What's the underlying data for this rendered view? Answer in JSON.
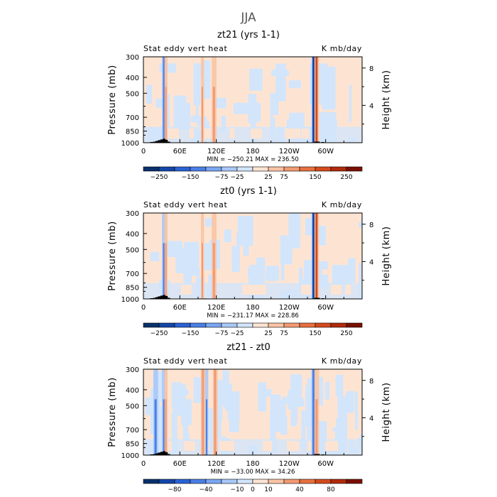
{
  "title": "JJA",
  "chart_data": [
    {
      "type": "heatmap",
      "title": "zt21 (yrs 1-1)",
      "left_label": "Stat eddy vert heat",
      "right_label": "K mb/day",
      "ylabel": "Pressure (mb)",
      "y2label": "Height (km)",
      "y_ticks": [
        "300",
        "400",
        "500",
        "700",
        "850",
        "1000"
      ],
      "y2_ticks": [
        "8",
        "4"
      ],
      "x_ticks": [
        "0",
        "60E",
        "120E",
        "180",
        "120W",
        "60W"
      ],
      "stats": "MIN = −250.21   MAX = 236.50",
      "colorbar": {
        "labels": [
          "−250",
          "−150",
          "−75",
          "−25",
          "25",
          "75",
          "150",
          "250"
        ],
        "colors": [
          "#08306b",
          "#1346a8",
          "#2a62d4",
          "#4a7fe6",
          "#7aa6f2",
          "#a9c8f7",
          "#d2e5fb",
          "#fde4d2",
          "#fac3a4",
          "#f29a72",
          "#e8703f",
          "#d44a1c",
          "#b02a0b",
          "#7a1000"
        ]
      },
      "stripes": [
        {
          "lon": 34,
          "width": 3,
          "strength": -0.7
        },
        {
          "lon": 37,
          "width": 2,
          "strength": 0.6
        },
        {
          "lon": 97,
          "width": 2,
          "strength": 0.55
        },
        {
          "lon": 116,
          "width": 3,
          "strength": 0.55
        },
        {
          "lon": 280,
          "width": 3,
          "strength": -1.0
        },
        {
          "lon": 285,
          "width": 3,
          "strength": 0.85
        }
      ]
    },
    {
      "type": "heatmap",
      "title": "zt0 (yrs 1-1)",
      "left_label": "Stat eddy vert heat",
      "right_label": "K mb/day",
      "ylabel": "Pressure (mb)",
      "y2label": "Height (km)",
      "y_ticks": [
        "300",
        "400",
        "500",
        "700",
        "850",
        "1000"
      ],
      "y2_ticks": [
        "8",
        "4"
      ],
      "x_ticks": [
        "0",
        "60E",
        "120E",
        "180",
        "120W",
        "60W"
      ],
      "stats": "MIN = −231.17   MAX = 228.86",
      "colorbar": {
        "labels": [
          "−250",
          "−150",
          "−75",
          "−25",
          "25",
          "75",
          "150",
          "250"
        ],
        "colors": [
          "#08306b",
          "#1346a8",
          "#2a62d4",
          "#4a7fe6",
          "#7aa6f2",
          "#a9c8f7",
          "#d2e5fb",
          "#fde4d2",
          "#fac3a4",
          "#f29a72",
          "#e8703f",
          "#d44a1c",
          "#b02a0b",
          "#7a1000"
        ]
      },
      "stripes": [
        {
          "lon": 34,
          "width": 3,
          "strength": -0.6
        },
        {
          "lon": 37,
          "width": 2,
          "strength": 0.5
        },
        {
          "lon": 97,
          "width": 2,
          "strength": 0.35
        },
        {
          "lon": 116,
          "width": 3,
          "strength": 0.4
        },
        {
          "lon": 280,
          "width": 3,
          "strength": -1.0
        },
        {
          "lon": 285,
          "width": 3,
          "strength": 0.8
        }
      ]
    },
    {
      "type": "heatmap",
      "title": "zt21 - zt0",
      "left_label": "Stat eddy vert heat",
      "right_label": "K mb/day",
      "ylabel": "Pressure (mb)",
      "y2label": "Height (km)",
      "y_ticks": [
        "300",
        "400",
        "500",
        "700",
        "850",
        "1000"
      ],
      "y2_ticks": [
        "8",
        "4"
      ],
      "x_ticks": [
        "0",
        "60E",
        "120E",
        "180",
        "120W",
        "60W"
      ],
      "stats": "MIN = −33.00   MAX =  34.26",
      "colorbar": {
        "labels": [
          "−80",
          "−40",
          "−10",
          "0",
          "10",
          "40",
          "80"
        ],
        "colors": [
          "#08306b",
          "#1346a8",
          "#2a62d4",
          "#4a7fe6",
          "#7aa6f2",
          "#a9c8f7",
          "#d2e5fb",
          "#fde4d2",
          "#fac3a4",
          "#f29a72",
          "#e8703f",
          "#d44a1c",
          "#b02a0b",
          "#7a1000"
        ]
      },
      "stripes": [
        {
          "lon": 20,
          "width": 3,
          "strength": -0.4
        },
        {
          "lon": 34,
          "width": 3,
          "strength": -0.55
        },
        {
          "lon": 37,
          "width": 2,
          "strength": 0.45
        },
        {
          "lon": 98,
          "width": 3,
          "strength": 0.7
        },
        {
          "lon": 104,
          "width": 2,
          "strength": -0.35
        },
        {
          "lon": 118,
          "width": 3,
          "strength": 0.7
        },
        {
          "lon": 280,
          "width": 3,
          "strength": -0.7
        },
        {
          "lon": 285,
          "width": 3,
          "strength": 0.5
        }
      ]
    }
  ]
}
